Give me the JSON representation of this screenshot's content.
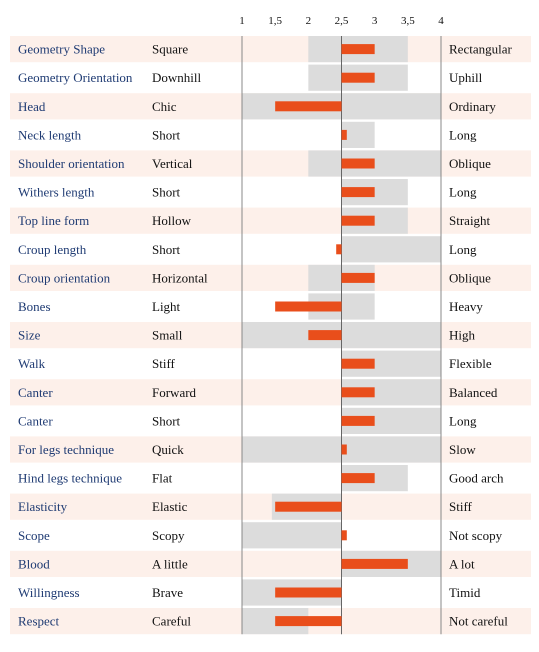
{
  "chart_data": {
    "type": "bar",
    "x_ticks": [
      1,
      1.5,
      2,
      2.5,
      3,
      3.5,
      4
    ],
    "x_tick_labels": [
      "1",
      "1,5",
      "2",
      "2,5",
      "3",
      "3,5",
      "4"
    ],
    "xlim": [
      1,
      4
    ],
    "reference": 2.5,
    "range_color": "#dcdcdc",
    "bar_color": "#e94e1b",
    "row_stripe_color": "#fdf0ea",
    "trait_color": "#1f3b73",
    "rows": [
      {
        "trait": "Geometry Shape",
        "low": "Square",
        "high": "Rectangular",
        "range": [
          2,
          3.5
        ],
        "value": 3
      },
      {
        "trait": "Geometry Orientation",
        "low": "Downhill",
        "high": "Uphill",
        "range": [
          2,
          3.5
        ],
        "value": 3
      },
      {
        "trait": "Head",
        "low": "Chic",
        "high": "Ordinary",
        "range": [
          1,
          4
        ],
        "value": 1.5
      },
      {
        "trait": "Neck length",
        "low": "Short",
        "high": "Long",
        "range": [
          2.5,
          3
        ],
        "value": 2.58
      },
      {
        "trait": "Shoulder orientation",
        "low": "Vertical",
        "high": "Oblique",
        "range": [
          2,
          4
        ],
        "value": 3
      },
      {
        "trait": "Withers length",
        "low": "Short",
        "high": "Long",
        "range": [
          2.5,
          3.5
        ],
        "value": 3
      },
      {
        "trait": "Top line form",
        "low": "Hollow",
        "high": "Straight",
        "range": [
          2.5,
          3.5
        ],
        "value": 3
      },
      {
        "trait": "Croup length",
        "low": "Short",
        "high": "Long",
        "range": [
          2.5,
          4
        ],
        "value": 2.42
      },
      {
        "trait": "Croup orientation",
        "low": "Horizontal",
        "high": "Oblique",
        "range": [
          2,
          3
        ],
        "value": 3
      },
      {
        "trait": "Bones",
        "low": "Light",
        "high": "Heavy",
        "range": [
          2,
          3
        ],
        "value": 1.5
      },
      {
        "trait": "Size",
        "low": "Small",
        "high": "High",
        "range": [
          1,
          4
        ],
        "value": 2
      },
      {
        "trait": "Walk",
        "low": "Stiff",
        "high": "Flexible",
        "range": [
          2.5,
          4
        ],
        "value": 3
      },
      {
        "trait": "Canter",
        "low": "Forward",
        "high": "Balanced",
        "range": [
          2.5,
          4
        ],
        "value": 3
      },
      {
        "trait": "Canter",
        "low": "Short",
        "high": "Long",
        "range": [
          2.5,
          4
        ],
        "value": 3
      },
      {
        "trait": "For legs technique",
        "low": "Quick",
        "high": "Slow",
        "range": [
          1,
          4
        ],
        "value": 2.58
      },
      {
        "trait": "Hind legs technique",
        "low": "Flat",
        "high": "Good arch",
        "range": [
          2.5,
          3.5
        ],
        "value": 3
      },
      {
        "trait": "Elasticity",
        "low": "Elastic",
        "high": "Stiff",
        "range": [
          1.45,
          2.5
        ],
        "value": 1.5
      },
      {
        "trait": "Scope",
        "low": "Scopy",
        "high": "Not scopy",
        "range": [
          1,
          2.5
        ],
        "value": 2.58
      },
      {
        "trait": "Blood",
        "low": "A little",
        "high": "A lot",
        "range": [
          2.5,
          4
        ],
        "value": 3.5
      },
      {
        "trait": "Willingness",
        "low": "Brave",
        "high": "Timid",
        "range": [
          1,
          2.5
        ],
        "value": 1.5
      },
      {
        "trait": "Respect",
        "low": "Careful",
        "high": "Not careful",
        "range": [
          1,
          2
        ],
        "value": 1.5
      }
    ]
  }
}
